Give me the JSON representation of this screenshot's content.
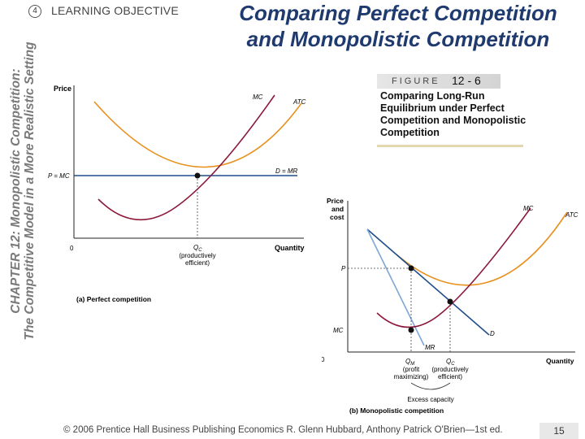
{
  "sidebar": {
    "line1": "CHAPTER 12: Monopolistic Competition:",
    "line2": "The Competitive Model in a More Realistic Setting"
  },
  "objective": {
    "number": "4",
    "label": "LEARNING OBJECTIVE"
  },
  "title": {
    "line1": "Comparing Perfect Competition",
    "line2": "and Monopolistic Competition"
  },
  "figure": {
    "word": "FIGURE",
    "number": "12 - 6",
    "caption": "Comparing Long-Run Equilibrium under Perfect Competition and Monopolistic Competition"
  },
  "panel_a": {
    "ylabel": "Price",
    "xlabel": "Quantity",
    "origin": "0",
    "mc": "MC",
    "atc": "ATC",
    "demand": "D = MR",
    "price_label": "P = MC",
    "q_label": "Q",
    "q_sub": "C",
    "q_note1": "(productively",
    "q_note2": "efficient)",
    "caption": "(a) Perfect competition"
  },
  "panel_b": {
    "ylabel1": "Price",
    "ylabel2": "and",
    "ylabel3": "cost",
    "xlabel": "Quantity",
    "origin": "0",
    "mc": "MC",
    "atc": "ATC",
    "demand": "D",
    "mr": "MR",
    "price_label": "P",
    "mc_left": "MC",
    "qm": "Q",
    "qm_sub": "M",
    "qm_note1": "(profit",
    "qm_note2": "maximizing)",
    "qc": "Q",
    "qc_sub": "C",
    "qc_note1": "(productively",
    "qc_note2": "efficient)",
    "excess": "Excess capacity",
    "caption": "(b) Monopolistic competition"
  },
  "footer": {
    "text": "© 2006 Prentice Hall Business Publishing Economics R. Glenn Hubbard, Anthony Patrick O'Brien—1st ed.",
    "page": "15"
  },
  "colors": {
    "title": "#1f3a6e",
    "mc": "#8b1a3a",
    "atc": "#e8901e",
    "demand": "#1f4e8c",
    "mr": "#7ea6d6"
  }
}
